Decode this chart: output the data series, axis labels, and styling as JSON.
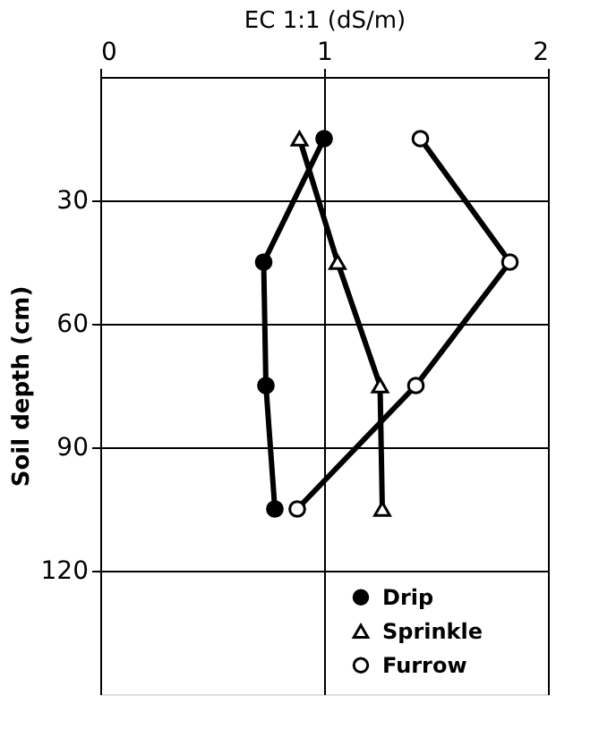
{
  "chart_data": {
    "type": "line",
    "xlabel": "EC 1:1 (dS/m)",
    "ylabel": "Soil depth (cm)",
    "xlim": [
      0,
      2
    ],
    "xticks": [
      0,
      1,
      2
    ],
    "ylim": [
      150,
      0
    ],
    "yticks": [
      30,
      60,
      90,
      120
    ],
    "grid": true,
    "legend": "bottom right",
    "series": [
      {
        "name": "Drip",
        "color": "#000000",
        "marker": "circle",
        "x": [
          1.0,
          0.73,
          0.74,
          0.78
        ],
        "values": [
          15,
          45,
          75,
          105
        ]
      },
      {
        "name": "Sprinkle",
        "color": "#000000",
        "marker": "triangle",
        "x": [
          0.89,
          1.06,
          1.25,
          1.26
        ],
        "values": [
          15,
          45,
          75,
          105
        ]
      },
      {
        "name": "Furrow",
        "color": "#000000",
        "marker": "circle",
        "x": [
          1.43,
          1.83,
          1.41,
          0.88
        ],
        "values": [
          15,
          45,
          75,
          105
        ]
      }
    ]
  }
}
